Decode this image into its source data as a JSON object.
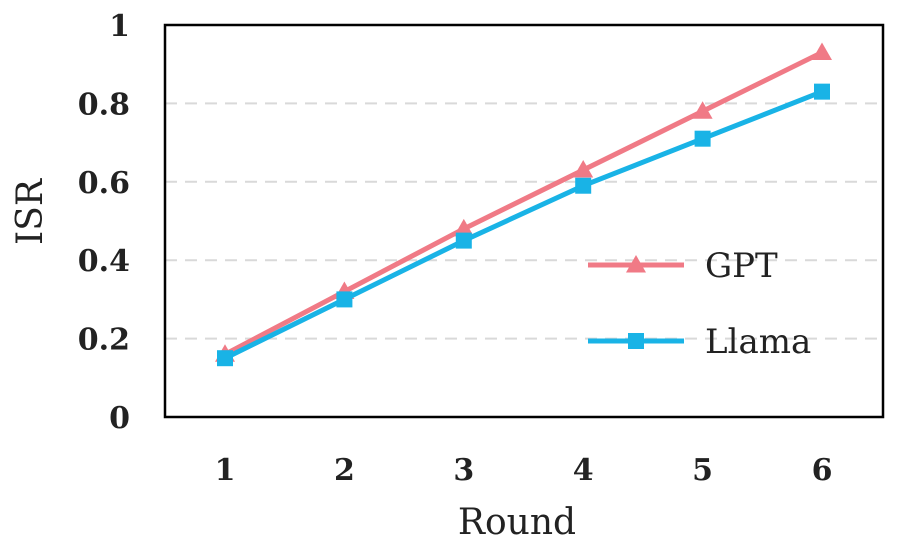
{
  "chart_data": {
    "type": "line",
    "title": "",
    "xlabel": "Round",
    "ylabel": "ISR",
    "x": [
      1,
      2,
      3,
      4,
      5,
      6
    ],
    "xticks": [
      "1",
      "2",
      "3",
      "4",
      "5",
      "6"
    ],
    "ylim": [
      0,
      1
    ],
    "yticks": [
      "0",
      "0.2",
      "0.4",
      "0.6",
      "0.8",
      "1"
    ],
    "grid": true,
    "legend_position": "right",
    "series": [
      {
        "name": "GPT",
        "values": [
          0.16,
          0.32,
          0.48,
          0.63,
          0.78,
          0.93
        ],
        "color": "#f07a86",
        "marker": "triangle"
      },
      {
        "name": "Llama",
        "values": [
          0.15,
          0.3,
          0.45,
          0.59,
          0.71,
          0.83
        ],
        "color": "#19b3e6",
        "marker": "square"
      }
    ]
  }
}
